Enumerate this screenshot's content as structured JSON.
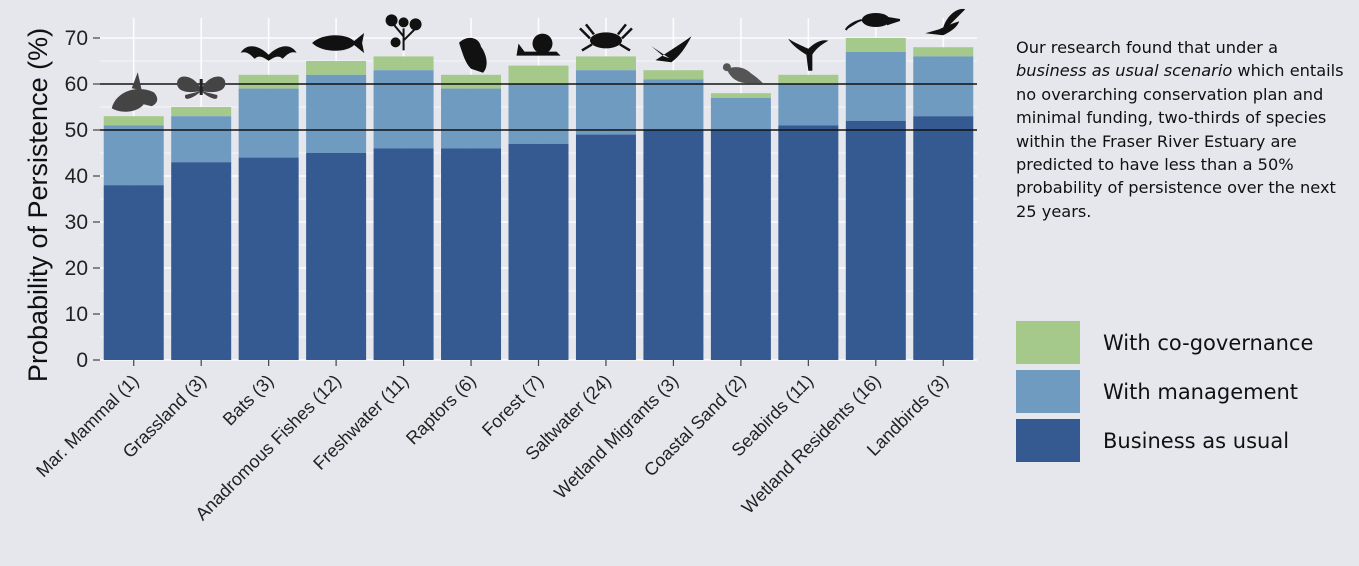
{
  "chart_data": {
    "type": "bar",
    "stacked": true,
    "categories": [
      "Mar. Mammal (1)",
      "Grassland (3)",
      "Bats (3)",
      "Anadromous Fishes (12)",
      "Freshwater (11)",
      "Raptors (6)",
      "Forest (7)",
      "Saltwater (24)",
      "Wetland Migrants (3)",
      "Coastal Sand (2)",
      "Seabirds (11)",
      "Wetland Residents (16)",
      "Landbirds (3)"
    ],
    "series": [
      {
        "name": "Business as usual",
        "color": "#355a92",
        "values": [
          38,
          43,
          44,
          45,
          46,
          46,
          47,
          49,
          50,
          50,
          51,
          52,
          53
        ]
      },
      {
        "name": "With management",
        "color": "#6f9bc1",
        "cumulative_values": [
          51,
          53,
          59,
          62,
          63,
          59,
          60,
          63,
          61,
          57,
          60,
          67,
          66
        ]
      },
      {
        "name": "With co-governance",
        "color": "#a5c98a",
        "cumulative_values": [
          53,
          55,
          62,
          65,
          66,
          62,
          64,
          66,
          63,
          58,
          62,
          70,
          68
        ]
      }
    ],
    "ylabel": "Probability of Persistence (%)",
    "ylim": [
      0,
      70
    ],
    "yticks": [
      0,
      10,
      20,
      30,
      40,
      50,
      60,
      70
    ],
    "reference_lines": [
      50,
      60
    ],
    "grid": true,
    "legend_position": "right",
    "icons": [
      "orca-icon",
      "butterfly-icon",
      "bat-icon",
      "fish-icon",
      "plant-icon",
      "raptor-icon",
      "snail-icon",
      "crab-icon",
      "bird-flying-icon",
      "sandpiper-icon",
      "cormorant-icon",
      "shrew-icon",
      "hummingbird-icon"
    ]
  },
  "panel": {
    "text_before": "Our research found that under a ",
    "text_emphasis": "business as usual scenario",
    "text_after": " which entails no overarching conservation plan and minimal funding, two-thirds of species within the Fraser River Estuary are predicted to have less than a 50% probability of persistence over the next 25 years."
  },
  "legend": [
    {
      "label": "With co-governance",
      "color": "#a5c98a"
    },
    {
      "label": "With management",
      "color": "#6f9bc1"
    },
    {
      "label": "Business as usual",
      "color": "#355a92"
    }
  ]
}
